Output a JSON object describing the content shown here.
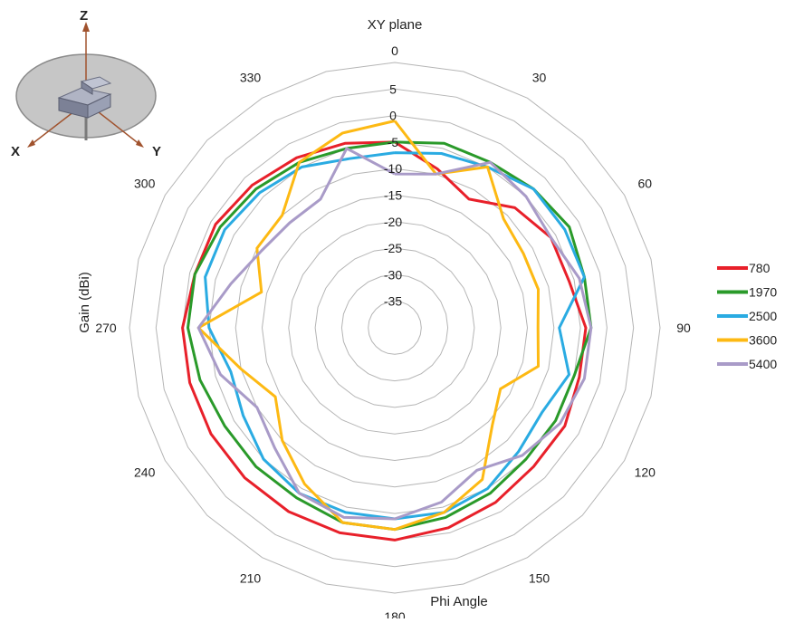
{
  "chart_data": {
    "type": "polar-line",
    "title": "XY plane",
    "angle_axis_label": "Phi  Angle",
    "radial_axis_label": "Gain (dBi)",
    "rlim": [
      -40,
      10
    ],
    "radial_ticks": [
      5,
      0,
      -5,
      -10,
      -15,
      -20,
      -25,
      -30,
      -35
    ],
    "angle_ticks": [
      0,
      30,
      60,
      90,
      120,
      150,
      180,
      210,
      240,
      270,
      300,
      330
    ],
    "angle_step_deg": 15,
    "grid": true,
    "legend_position": "right",
    "angles": [
      0,
      15,
      30,
      45,
      60,
      75,
      90,
      105,
      120,
      135,
      150,
      165,
      180,
      195,
      210,
      225,
      240,
      255,
      270,
      285,
      300,
      315,
      330,
      345
    ],
    "series": [
      {
        "name": "780",
        "color": "#e8202a",
        "values": [
          -5,
          -9,
          -12,
          -8,
          -6,
          -6,
          -4,
          -4,
          -3,
          -3,
          -2,
          -1,
          0,
          0,
          0,
          0,
          0,
          0,
          0,
          -1,
          -1,
          -2,
          -3,
          -4
        ]
      },
      {
        "name": "1970",
        "color": "#2a9a2a",
        "values": [
          -5,
          -4,
          -4,
          -3,
          -2,
          -3,
          -3,
          -5,
          -5,
          -5,
          -4,
          -3,
          -2,
          -2,
          -3,
          -3,
          -3,
          -2,
          -1,
          -1,
          -2,
          -3,
          -4,
          -5
        ]
      },
      {
        "name": "2500",
        "color": "#2aabe2",
        "values": [
          -7,
          -6,
          -5,
          -3,
          -3,
          -3,
          -9,
          -6,
          -8,
          -7,
          -5,
          -4,
          -4,
          -4,
          -4,
          -5,
          -7,
          -8,
          -5,
          -3,
          -3,
          -4,
          -5,
          -7
        ]
      },
      {
        "name": "3600",
        "color": "#fdb913",
        "values": [
          -1,
          -10,
          -5,
          -11,
          -12,
          -12,
          -13,
          -12,
          -17,
          -14,
          -7,
          -4,
          -2,
          -2,
          -6,
          -10,
          -14,
          -10,
          -3,
          -14,
          -10,
          -10,
          -4,
          -2
        ]
      },
      {
        "name": "5400",
        "color": "#a99bc8",
        "values": [
          -11,
          -10,
          -4,
          -5,
          -6,
          -4,
          -3,
          -3,
          -4,
          -6,
          -9,
          -6,
          -4,
          -3,
          -4,
          -8,
          -10,
          -6,
          -3,
          -8,
          -11,
          -12,
          -12,
          -5
        ]
      }
    ]
  }
}
